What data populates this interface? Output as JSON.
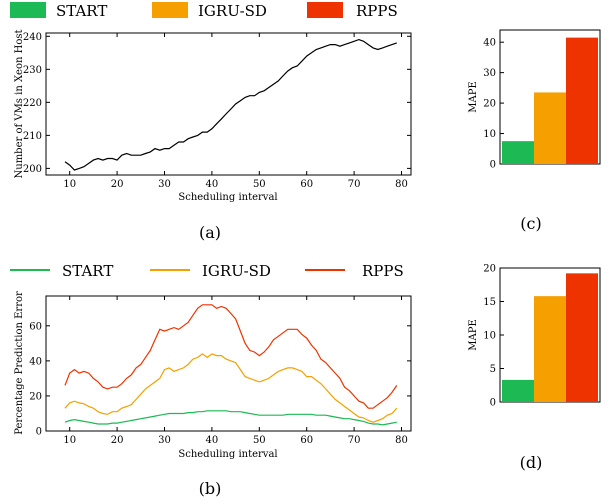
{
  "colors": {
    "start": "#1db954",
    "igru": "#f5a000",
    "rpps": "#ee3300"
  },
  "legends": {
    "top": [
      "START",
      "IGRU-SD",
      "RPPS"
    ],
    "bottom": [
      "START",
      "IGRU-SD",
      "RPPS"
    ]
  },
  "captions": {
    "a": "(a)",
    "b": "(b)",
    "c": "(c)",
    "d": "(d)"
  },
  "chart_data": [
    {
      "id": "a",
      "type": "line",
      "xlabel": "Scheduling interval",
      "ylabel": "Number of VMs in Xeon Host",
      "xlim": [
        5,
        82
      ],
      "ylim": [
        198,
        241
      ],
      "xticks": [
        10,
        20,
        30,
        40,
        50,
        60,
        70,
        80
      ],
      "yticks": [
        200,
        210,
        220,
        230,
        240
      ],
      "series": [
        {
          "x": [
            9,
            10,
            11,
            12,
            13,
            14,
            15,
            16,
            17,
            18,
            19,
            20,
            21,
            22,
            23,
            24,
            25,
            26,
            27,
            28,
            29,
            30,
            31,
            32,
            33,
            34,
            35,
            36,
            37,
            38,
            39,
            40,
            41,
            42,
            43,
            44,
            45,
            46,
            47,
            48,
            49,
            50,
            51,
            52,
            53,
            54,
            55,
            56,
            57,
            58,
            59,
            60,
            61,
            62,
            63,
            64,
            65,
            66,
            67,
            68,
            69,
            70,
            71,
            72,
            73,
            74,
            75,
            76,
            77,
            78,
            79
          ],
          "values": [
            202,
            201,
            199.5,
            200,
            200.5,
            201.5,
            202.5,
            203,
            202.5,
            203,
            203,
            202.5,
            204,
            204.5,
            204,
            204,
            204,
            204.5,
            205,
            206,
            205.5,
            206,
            206,
            207,
            208,
            208,
            209,
            209.5,
            210,
            211,
            211,
            212,
            213.5,
            215,
            216.5,
            218,
            219.5,
            220.5,
            221.5,
            222,
            222,
            223,
            223.5,
            224.5,
            225.5,
            226.5,
            228,
            229.5,
            230.5,
            231,
            232.5,
            234,
            235,
            236,
            236.5,
            237,
            237.5,
            237.5,
            237,
            237.5,
            238,
            238.5,
            239,
            238.5,
            237.5,
            236.5,
            236,
            236.5,
            237,
            237.5,
            238
          ]
        }
      ]
    },
    {
      "id": "b",
      "type": "line",
      "xlabel": "Scheduling interval",
      "ylabel": "Percentage Prediction Error",
      "xlim": [
        5,
        82
      ],
      "ylim": [
        0,
        77
      ],
      "xticks": [
        10,
        20,
        30,
        40,
        50,
        60,
        70,
        80
      ],
      "yticks": [
        0,
        20,
        40,
        60
      ],
      "x": [
        9,
        10,
        11,
        12,
        13,
        14,
        15,
        16,
        17,
        18,
        19,
        20,
        21,
        22,
        23,
        24,
        25,
        26,
        27,
        28,
        29,
        30,
        31,
        32,
        33,
        34,
        35,
        36,
        37,
        38,
        39,
        40,
        41,
        42,
        43,
        44,
        45,
        46,
        47,
        48,
        49,
        50,
        51,
        52,
        53,
        54,
        55,
        56,
        57,
        58,
        59,
        60,
        61,
        62,
        63,
        64,
        65,
        66,
        67,
        68,
        69,
        70,
        71,
        72,
        73,
        74,
        75,
        76,
        77,
        78,
        79
      ],
      "series": [
        {
          "name": "START",
          "values": [
            5,
            6,
            6.5,
            6,
            5.5,
            5,
            4.5,
            4,
            4,
            4,
            4.5,
            4.5,
            5,
            5.5,
            6,
            6.5,
            7,
            7.5,
            8,
            8.5,
            9,
            9.5,
            10,
            10,
            10,
            10,
            10.5,
            10.5,
            11,
            11,
            11.5,
            11.5,
            11.5,
            11.5,
            11.5,
            11,
            11,
            11,
            10.5,
            10,
            9.5,
            9,
            9,
            9,
            9,
            9,
            9,
            9.5,
            9.5,
            9.5,
            9.5,
            9.5,
            9.5,
            9,
            9,
            9,
            8.5,
            8,
            7.5,
            7,
            7,
            6.5,
            6,
            5.5,
            4.5,
            4,
            4,
            3.5,
            4,
            4.5,
            5
          ]
        },
        {
          "name": "IGRU-SD",
          "values": [
            13,
            16,
            17,
            16,
            15.5,
            14,
            13,
            11,
            10,
            9.5,
            11,
            11,
            13,
            14,
            15,
            18,
            21,
            24,
            26,
            28,
            30,
            35,
            36,
            34,
            35,
            36,
            38,
            41,
            42,
            44,
            42,
            44,
            43,
            43,
            41,
            40,
            39,
            35,
            31,
            30,
            29,
            28,
            29,
            30,
            32,
            34,
            35,
            36,
            36,
            35,
            34,
            31,
            31,
            29,
            27,
            24,
            21,
            18,
            16,
            14,
            12,
            10,
            8,
            7.5,
            6,
            5,
            6,
            7,
            9,
            10,
            13
          ]
        },
        {
          "name": "RPPS",
          "values": [
            26,
            33,
            35,
            33,
            34,
            33,
            30,
            28,
            25,
            24,
            25,
            25,
            27,
            30,
            32,
            36,
            38,
            42,
            46,
            52,
            58,
            57,
            58,
            59,
            58,
            60,
            62,
            66,
            70,
            72,
            72,
            72,
            70,
            71,
            70,
            67,
            64,
            57,
            50,
            46,
            45,
            43,
            45,
            48,
            52,
            54,
            56,
            58,
            58,
            58,
            55,
            53,
            49,
            46,
            41,
            39,
            36,
            33,
            30,
            25,
            23,
            20,
            17,
            16,
            13,
            13,
            15,
            17,
            19,
            22,
            26
          ]
        }
      ]
    },
    {
      "id": "c",
      "type": "bar",
      "ylabel": "MAPE",
      "ylim": [
        0,
        44
      ],
      "yticks": [
        0,
        10,
        20,
        30,
        40
      ],
      "categories": [
        "START",
        "IGRU-SD",
        "RPPS"
      ],
      "values": [
        7.5,
        23.5,
        41.5
      ]
    },
    {
      "id": "d",
      "type": "bar",
      "ylabel": "MAPE",
      "ylim": [
        0,
        20
      ],
      "yticks": [
        0,
        5,
        10,
        15,
        20
      ],
      "categories": [
        "START",
        "IGRU-SD",
        "RPPS"
      ],
      "values": [
        3.3,
        15.8,
        19.2
      ]
    }
  ]
}
